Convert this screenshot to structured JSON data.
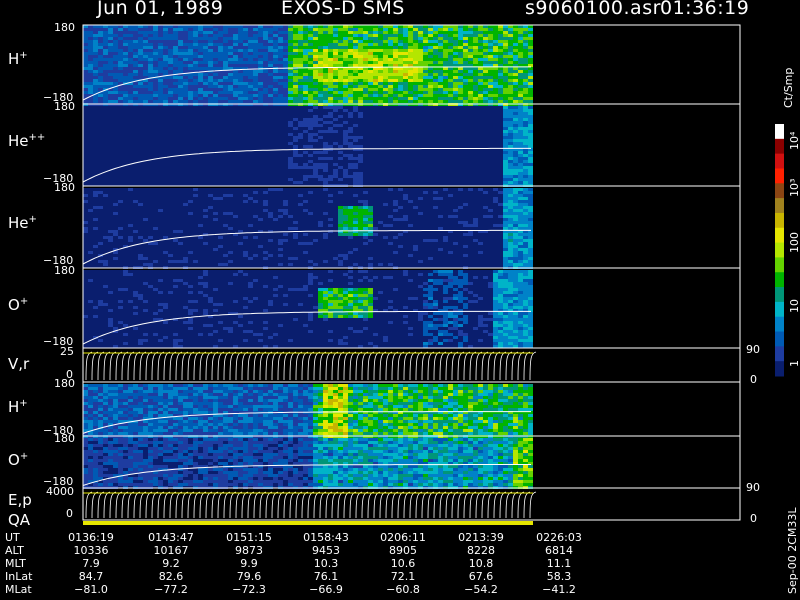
{
  "header": {
    "date": "Jun 01, 1989",
    "instrument": "EXOS-D SMS",
    "file": "s9060100.asr",
    "time": "01:36:19"
  },
  "panels": [
    {
      "id": "h-plus",
      "label": "H",
      "sup": "+",
      "ytop": "180",
      "ybot": "−180"
    },
    {
      "id": "he-pp",
      "label": "He",
      "sup": "++",
      "ytop": "180",
      "ybot": "−180"
    },
    {
      "id": "he-plus",
      "label": "He",
      "sup": "+",
      "ytop": "180",
      "ybot": "−180"
    },
    {
      "id": "o-plus",
      "label": "O",
      "sup": "+",
      "ytop": "180",
      "ybot": "−180"
    },
    {
      "id": "vr",
      "label": "V,r",
      "sup": "",
      "ytop": "25",
      "ybot": "0",
      "rtop": "90",
      "rbot": "0"
    },
    {
      "id": "h-plus-2",
      "label": "H",
      "sup": "+",
      "ytop": "180",
      "ybot": "−180"
    },
    {
      "id": "o-plus-2",
      "label": "O",
      "sup": "+",
      "ytop": "180",
      "ybot": "−180"
    },
    {
      "id": "ep",
      "label": "E,p",
      "sup": "",
      "ytop": "4000",
      "ybot": "0",
      "rtop": "90",
      "rbot": "0"
    }
  ],
  "qa_label": "QA",
  "colorbar": {
    "unit": "Ct/Smp",
    "labels": [
      "10⁴",
      "10³",
      "100",
      "10",
      "1"
    ],
    "colors": [
      "#ffffff",
      "#8b0000",
      "#d01010",
      "#ff2000",
      "#8b4513",
      "#a0821e",
      "#c8b400",
      "#e6e600",
      "#b4e600",
      "#64d200",
      "#00b400",
      "#009678",
      "#00b4c8",
      "#0082c8",
      "#005ab4",
      "#1e3ca0",
      "#0a1e6e"
    ]
  },
  "side_note": "Sep-00 2CM33L",
  "info_table": {
    "rows": [
      {
        "label": "UT",
        "values": [
          "0136:19",
          "0143:47",
          "0151:15",
          "0158:43",
          "0206:11",
          "0213:39",
          "0226:03"
        ]
      },
      {
        "label": "ALT",
        "values": [
          "10336",
          "10167",
          "9873",
          "9453",
          "8905",
          "8228",
          "6814"
        ]
      },
      {
        "label": "MLT",
        "values": [
          "7.9",
          "9.2",
          "9.9",
          "10.3",
          "10.6",
          "10.8",
          "11.1"
        ]
      },
      {
        "label": "InLat",
        "values": [
          "84.7",
          "82.6",
          "79.6",
          "76.1",
          "72.1",
          "67.6",
          "58.3"
        ]
      },
      {
        "label": "MLat",
        "values": [
          "−81.0",
          "−77.2",
          "−72.3",
          "−66.9",
          "−60.8",
          "−54.2",
          "−41.2"
        ]
      }
    ]
  }
}
